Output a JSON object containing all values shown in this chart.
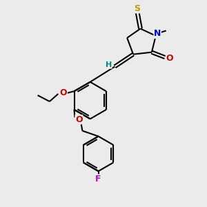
{
  "bg_color": "#ebebeb",
  "atom_colors": {
    "S": "#b8a000",
    "N": "#0000cc",
    "O": "#cc0000",
    "F": "#cc00cc",
    "C": "#000000",
    "H": "#008888"
  },
  "bond_color": "#000000",
  "bond_width": 1.5,
  "fig_width": 3.0,
  "fig_height": 3.0,
  "dpi": 100
}
